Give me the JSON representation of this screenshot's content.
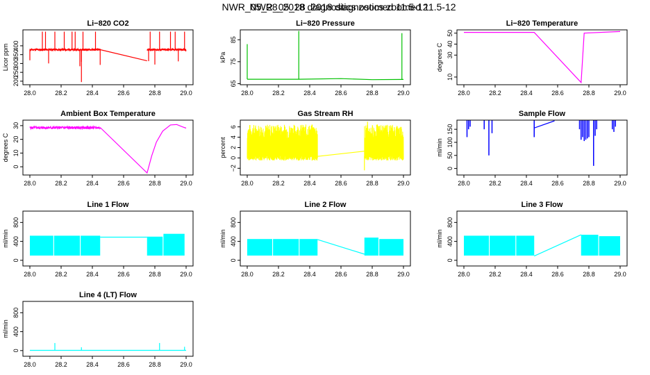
{
  "page": {
    "title_a": "NWR_05_28_2018 diagnostics zoomed 11.5-12",
    "title_b": "NWR_05_28_2018 diagnostics zoomed 11.5-12"
  },
  "chart_data": [
    {
      "id": "co2",
      "type": "line",
      "title": "Li−820 CO2",
      "ylabel": "Licor ppm",
      "color": "#ff0000",
      "xlim": [
        28.0,
        29.0
      ],
      "ylim": [
        180,
        490
      ],
      "yticks": [
        200,
        250,
        300,
        350,
        400
      ],
      "ytick_labels": [
        "200",
        "250",
        "300",
        "350",
        "400"
      ],
      "xticks": [
        28.0,
        28.2,
        28.4,
        28.6,
        28.8,
        29.0
      ],
      "xtick_labels": [
        "28.0",
        "28.2",
        "28.4",
        "28.6",
        "28.8",
        "29.0"
      ],
      "pattern": "noisy-flat",
      "noise": {
        "base": 378,
        "amp": 6,
        "seed": 11,
        "spikes_up": [
          28.08,
          28.1,
          28.16,
          28.22,
          28.27,
          28.29,
          28.34,
          28.42,
          28.77,
          28.83,
          28.9,
          28.93,
          28.99
        ],
        "spikes_down": [
          28.0,
          28.12,
          28.32,
          28.33,
          28.45,
          28.76,
          28.8,
          28.95
        ],
        "spike_top": 480,
        "spike_bottom": 195
      },
      "segments": [
        [
          [
            28.0,
            378
          ],
          [
            28.45,
            378
          ]
        ],
        [
          [
            28.45,
            378
          ],
          [
            28.75,
            315
          ]
        ],
        [
          [
            28.75,
            378
          ],
          [
            29.0,
            378
          ]
        ]
      ]
    },
    {
      "id": "pressure",
      "type": "line",
      "title": "Li−820 Pressure",
      "ylabel": "kPa",
      "color": "#00c000",
      "xlim": [
        28.0,
        29.0
      ],
      "ylim": [
        64.5,
        89.5
      ],
      "yticks": [
        65,
        75,
        85
      ],
      "ytick_labels": [
        "65",
        "75",
        "85"
      ],
      "xticks": [
        28.0,
        28.2,
        28.4,
        28.6,
        28.8,
        29.0
      ],
      "xtick_labels": [
        "28.0",
        "28.2",
        "28.4",
        "28.6",
        "28.8",
        "29.0"
      ],
      "pattern": "flat-with-spikes",
      "segments": [
        [
          [
            28.0,
            67.0
          ],
          [
            28.33,
            67.0
          ],
          [
            28.6,
            67.3
          ],
          [
            28.8,
            66.8
          ],
          [
            29.0,
            66.9
          ]
        ]
      ],
      "spikes": [
        [
          28.0,
          83.0
        ],
        [
          28.33,
          89.0
        ],
        [
          28.99,
          88.0
        ]
      ]
    },
    {
      "id": "temp",
      "type": "line",
      "title": "Li−820 Temperature",
      "ylabel": "degrees C",
      "color": "#ff00ff",
      "xlim": [
        28.0,
        29.0
      ],
      "ylim": [
        3,
        53
      ],
      "yticks": [
        10,
        30,
        40,
        50
      ],
      "ytick_labels": [
        "10",
        "30",
        "40",
        "50"
      ],
      "xticks": [
        28.0,
        28.2,
        28.4,
        28.6,
        28.8,
        29.0
      ],
      "xtick_labels": [
        "28.0",
        "28.2",
        "28.4",
        "28.6",
        "28.8",
        "29.0"
      ],
      "pattern": "line",
      "segments": [
        [
          [
            28.0,
            50.7
          ],
          [
            28.45,
            50.7
          ],
          [
            28.75,
            5.0
          ],
          [
            28.77,
            50.0
          ],
          [
            29.0,
            51.5
          ]
        ]
      ]
    },
    {
      "id": "ambient",
      "type": "line",
      "title": "Ambient Box Temperature",
      "ylabel": "degrees C",
      "color": "#ff00ff",
      "xlim": [
        28.0,
        29.0
      ],
      "ylim": [
        -6,
        34
      ],
      "yticks": [
        0,
        10,
        20,
        30
      ],
      "ytick_labels": [
        "0",
        "10",
        "20",
        "30"
      ],
      "xticks": [
        28.0,
        28.2,
        28.4,
        28.6,
        28.8,
        29.0
      ],
      "xtick_labels": [
        "28.0",
        "28.2",
        "28.4",
        "28.6",
        "28.8",
        "29.0"
      ],
      "pattern": "noisy-then-line",
      "noise": {
        "base": 28.5,
        "amp": 1.0,
        "seed": 5,
        "from": 28.0,
        "to": 28.45
      },
      "segments": [
        [
          [
            28.45,
            28.7
          ],
          [
            28.75,
            -4.5
          ],
          [
            28.78,
            8
          ],
          [
            28.81,
            18
          ],
          [
            28.85,
            26
          ],
          [
            28.9,
            30.5
          ],
          [
            28.94,
            30.8
          ],
          [
            28.98,
            29.0
          ],
          [
            29.0,
            28.2
          ]
        ]
      ]
    },
    {
      "id": "rh",
      "type": "band",
      "title": "Gas Stream RH",
      "ylabel": "percent",
      "color": "#ffff00",
      "xlim": [
        28.0,
        29.0
      ],
      "ylim": [
        -3.3,
        7.3
      ],
      "yticks": [
        -2,
        0,
        2,
        4,
        6
      ],
      "ytick_labels": [
        "−2",
        "0",
        "2",
        "4",
        "6"
      ],
      "xticks": [
        28.0,
        28.2,
        28.4,
        28.6,
        28.8,
        29.0
      ],
      "xtick_labels": [
        "28.0",
        "28.2",
        "28.4",
        "28.6",
        "28.8",
        "29.0"
      ],
      "pattern": "noisy-band",
      "noise": {
        "lo": [
          -0.5,
          0.5
        ],
        "hi": [
          3.5,
          6.5
        ],
        "seed": 7,
        "ranges": [
          [
            28.0,
            28.45
          ],
          [
            28.75,
            29.0
          ]
        ]
      },
      "segments": [
        [
          [
            28.45,
            0.3
          ],
          [
            28.75,
            1.3
          ]
        ]
      ],
      "spikes": [
        [
          28.75,
          -2.4
        ],
        [
          28.77,
          7.0
        ]
      ]
    },
    {
      "id": "sampleflow",
      "type": "line",
      "title": "Sample Flow",
      "ylabel": "ml/min",
      "color": "#0000ff",
      "xlim": [
        28.0,
        29.0
      ],
      "ylim": [
        -25,
        185
      ],
      "yticks": [
        0,
        50,
        100,
        150
      ],
      "ytick_labels": [
        "0",
        "50",
        "100",
        "150"
      ],
      "xticks": [
        28.0,
        28.2,
        28.4,
        28.6,
        28.8,
        29.0
      ],
      "xtick_labels": [
        "28.0",
        "28.2",
        "28.4",
        "28.6",
        "28.8",
        "29.0"
      ],
      "pattern": "top-with-drops",
      "segments": [
        [
          [
            28.45,
            155
          ],
          [
            28.58,
            183
          ]
        ]
      ],
      "drops": [
        [
          28.02,
          120
        ],
        [
          28.03,
          150
        ],
        [
          28.04,
          160
        ],
        [
          28.13,
          150
        ],
        [
          28.16,
          50
        ],
        [
          28.18,
          135
        ],
        [
          28.45,
          120
        ],
        [
          28.74,
          150
        ],
        [
          28.75,
          110
        ],
        [
          28.76,
          120
        ],
        [
          28.77,
          105
        ],
        [
          28.78,
          110
        ],
        [
          28.79,
          115
        ],
        [
          28.8,
          120
        ],
        [
          28.83,
          10
        ],
        [
          28.84,
          125
        ],
        [
          28.85,
          150
        ],
        [
          28.95,
          150
        ],
        [
          28.96,
          140
        ],
        [
          28.97,
          160
        ]
      ]
    },
    {
      "id": "line1",
      "type": "band",
      "title": "Line 1 Flow",
      "ylabel": "ml/min",
      "color": "#00ffff",
      "xlim": [
        28.0,
        29.0
      ],
      "ylim": [
        -120,
        1040
      ],
      "yticks": [
        0,
        400,
        800
      ],
      "ytick_labels": [
        "0",
        "400",
        "800"
      ],
      "xticks": [
        28.0,
        28.2,
        28.4,
        28.6,
        28.8,
        29.0
      ],
      "xtick_labels": [
        "28.0",
        "28.2",
        "28.4",
        "28.6",
        "28.8",
        "29.0"
      ],
      "pattern": "block-band",
      "blocks": [
        [
          28.0,
          28.15,
          100,
          520
        ],
        [
          28.155,
          28.32,
          100,
          520
        ],
        [
          28.325,
          28.45,
          100,
          520
        ],
        [
          28.75,
          28.85,
          100,
          500
        ],
        [
          28.855,
          28.99,
          100,
          560
        ]
      ],
      "segments": [
        [
          [
            28.45,
            490
          ],
          [
            28.75,
            490
          ]
        ]
      ]
    },
    {
      "id": "line2",
      "type": "band",
      "title": "Line 2 Flow",
      "ylabel": "ml/min",
      "color": "#00ffff",
      "xlim": [
        28.0,
        29.0
      ],
      "ylim": [
        -120,
        1040
      ],
      "yticks": [
        0,
        400,
        800
      ],
      "ytick_labels": [
        "0",
        "400",
        "800"
      ],
      "xticks": [
        28.0,
        28.2,
        28.4,
        28.6,
        28.8,
        29.0
      ],
      "xtick_labels": [
        "28.0",
        "28.2",
        "28.4",
        "28.6",
        "28.8",
        "29.0"
      ],
      "pattern": "block-band",
      "blocks": [
        [
          28.0,
          28.16,
          100,
          450
        ],
        [
          28.165,
          28.33,
          100,
          450
        ],
        [
          28.335,
          28.45,
          100,
          450
        ],
        [
          28.75,
          28.84,
          100,
          480
        ],
        [
          28.845,
          29.0,
          100,
          450
        ]
      ],
      "segments": [
        [
          [
            28.45,
            440
          ],
          [
            28.75,
            130
          ]
        ]
      ]
    },
    {
      "id": "line3",
      "type": "band",
      "title": "Line 3 Flow",
      "ylabel": "ml/min",
      "color": "#00ffff",
      "xlim": [
        28.0,
        29.0
      ],
      "ylim": [
        -120,
        1040
      ],
      "yticks": [
        0,
        400,
        800
      ],
      "ytick_labels": [
        "0",
        "400",
        "800"
      ],
      "xticks": [
        28.0,
        28.2,
        28.4,
        28.6,
        28.8,
        29.0
      ],
      "xtick_labels": [
        "28.0",
        "28.2",
        "28.4",
        "28.6",
        "28.8",
        "29.0"
      ],
      "pattern": "block-band",
      "blocks": [
        [
          28.0,
          28.16,
          100,
          520
        ],
        [
          28.165,
          28.33,
          100,
          520
        ],
        [
          28.335,
          28.45,
          100,
          520
        ],
        [
          28.75,
          28.86,
          100,
          540
        ],
        [
          28.865,
          29.0,
          100,
          510
        ]
      ],
      "segments": [
        [
          [
            28.45,
            90
          ],
          [
            28.75,
            540
          ]
        ]
      ]
    },
    {
      "id": "line4",
      "type": "line",
      "title": "Line 4 (LT) Flow",
      "ylabel": "ml/min",
      "color": "#00ffff",
      "xlim": [
        28.0,
        29.0
      ],
      "ylim": [
        -120,
        1040
      ],
      "yticks": [
        0,
        400,
        800
      ],
      "ytick_labels": [
        "0",
        "400",
        "800"
      ],
      "xticks": [
        28.0,
        28.2,
        28.4,
        28.6,
        28.8,
        29.0
      ],
      "xtick_labels": [
        "28.0",
        "28.2",
        "28.4",
        "28.6",
        "28.8",
        "29.0"
      ],
      "pattern": "flat-with-spikes",
      "segments": [
        [
          [
            28.0,
            5
          ],
          [
            29.0,
            5
          ]
        ]
      ],
      "spikes": [
        [
          28.16,
          160
        ],
        [
          28.33,
          70
        ],
        [
          28.83,
          160
        ],
        [
          28.99,
          80
        ]
      ]
    }
  ]
}
